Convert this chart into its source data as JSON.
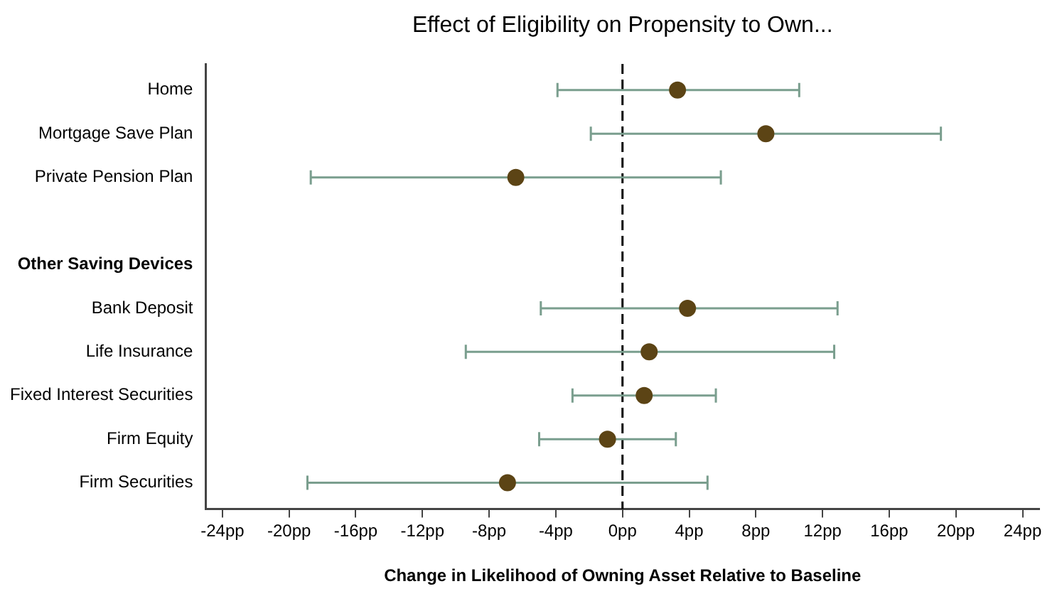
{
  "chart_data": {
    "type": "scatter",
    "orientation": "horizontal",
    "title": "Effect of Eligibility on Propensity to Own...",
    "xlabel": "Change in Likelihood of Owning Asset Relative to Baseline",
    "categories": [
      "Home",
      "Mortgage Save Plan",
      "Private Pension Plan",
      null,
      "Other Saving Devices",
      "Bank Deposit",
      "Life Insurance",
      "Fixed Interest Securities",
      "Firm Equity",
      "Firm Securities"
    ],
    "series": [
      {
        "color": "#5c4415",
        "values": [
          3.3,
          8.6,
          -6.4,
          null,
          null,
          3.9,
          1.6,
          1.3,
          -0.9,
          -6.9
        ],
        "errors": [
          [
            -3.9,
            10.6
          ],
          [
            -1.9,
            19.1
          ],
          [
            -18.7,
            5.9
          ],
          null,
          null,
          [
            -4.9,
            12.9
          ],
          [
            -9.4,
            12.7
          ],
          [
            -3.0,
            5.6
          ],
          [
            -5.0,
            3.2
          ],
          [
            -18.9,
            5.1
          ]
        ]
      }
    ],
    "xlim": [
      -25,
      25
    ],
    "xticks": [
      {
        "value": -24,
        "label": "-24pp"
      },
      {
        "value": -20,
        "label": "-20pp"
      },
      {
        "value": -16,
        "label": "-16pp"
      },
      {
        "value": -12,
        "label": "-12pp"
      },
      {
        "value": -8,
        "label": "-8pp"
      },
      {
        "value": -4,
        "label": "-4pp"
      },
      {
        "value": 0,
        "label": "0pp"
      },
      {
        "value": 4,
        "label": "4pp"
      },
      {
        "value": 8,
        "label": "8pp"
      },
      {
        "value": 12,
        "label": "12pp"
      },
      {
        "value": 16,
        "label": "16pp"
      },
      {
        "value": 20,
        "label": "20pp"
      },
      {
        "value": 24,
        "label": "24pp"
      }
    ],
    "ref_lines": [
      {
        "axis": "x",
        "value": 0,
        "color": "#000000",
        "line_style": "dashed"
      }
    ],
    "marker": "circle",
    "grid": false,
    "legend": false
  }
}
